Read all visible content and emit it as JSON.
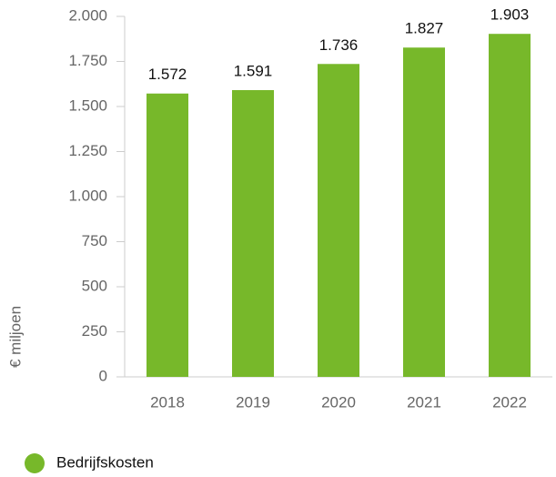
{
  "chart_data": {
    "type": "bar",
    "y_label": "€ miljoen",
    "categories": [
      "2018",
      "2019",
      "2020",
      "2021",
      "2022"
    ],
    "series": [
      {
        "name": "Bedrijfskosten",
        "color": "#77b82a",
        "values": [
          1572,
          1591,
          1736,
          1827,
          1903
        ],
        "value_labels": [
          "1.572",
          "1.591",
          "1.736",
          "1.827",
          "1.903"
        ]
      }
    ],
    "ylim": [
      0,
      2000
    ],
    "yticks": [
      0,
      250,
      500,
      750,
      {
        "value": 1000,
        "label": "1.000"
      },
      {
        "value": 1250,
        "label": "1.250"
      },
      {
        "value": 1500,
        "label": "1.500"
      },
      {
        "value": 1750,
        "label": "1.750"
      },
      {
        "value": 2000,
        "label": "2.000"
      }
    ],
    "grid": false,
    "legend": "bottom-left"
  }
}
